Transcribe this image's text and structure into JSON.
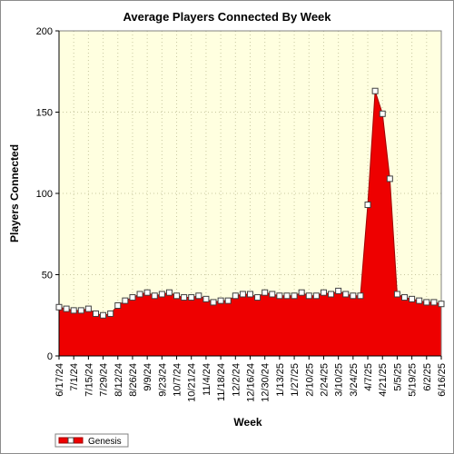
{
  "chart_data": {
    "type": "area",
    "title": "Average Players Connected By Week",
    "xlabel": "Week",
    "ylabel": "Players Connected",
    "ylim": [
      0,
      200
    ],
    "yticks": [
      0,
      50,
      100,
      150,
      200
    ],
    "grid": true,
    "legend_position": "bottom-left",
    "colors": {
      "fill": "#ee0000",
      "line": "#a00000",
      "plot_bg": "#ffffe0",
      "grid": "#c8c8a0"
    },
    "x_tick_labels": [
      "6/17/24",
      "7/1/24",
      "7/15/24",
      "7/29/24",
      "8/12/24",
      "8/26/24",
      "9/9/24",
      "9/23/24",
      "10/7/24",
      "10/21/24",
      "11/4/24",
      "11/18/24",
      "12/2/24",
      "12/16/24",
      "12/30/24",
      "1/13/25",
      "1/27/25",
      "2/10/25",
      "2/24/25",
      "3/10/25",
      "3/24/25",
      "4/7/25",
      "4/21/25",
      "5/5/25",
      "5/19/25",
      "6/2/25",
      "6/16/25"
    ],
    "series": [
      {
        "name": "Genesis",
        "x": [
          "6/17/24",
          "6/24/24",
          "7/1/24",
          "7/8/24",
          "7/15/24",
          "7/22/24",
          "7/29/24",
          "8/5/24",
          "8/12/24",
          "8/19/24",
          "8/26/24",
          "9/2/24",
          "9/9/24",
          "9/16/24",
          "9/23/24",
          "9/30/24",
          "10/7/24",
          "10/14/24",
          "10/21/24",
          "10/28/24",
          "11/4/24",
          "11/11/24",
          "11/18/24",
          "11/25/24",
          "12/2/24",
          "12/9/24",
          "12/16/24",
          "12/23/24",
          "12/30/24",
          "1/6/25",
          "1/13/25",
          "1/20/25",
          "1/27/25",
          "2/3/25",
          "2/10/25",
          "2/17/25",
          "2/24/25",
          "3/3/25",
          "3/10/25",
          "3/17/25",
          "3/24/25",
          "3/31/25",
          "4/7/25",
          "4/14/25",
          "4/21/25",
          "4/28/25",
          "5/5/25",
          "5/12/25",
          "5/19/25",
          "5/26/25",
          "6/2/25",
          "6/9/25",
          "6/16/25"
        ],
        "values": [
          30,
          29,
          28,
          28,
          29,
          26,
          25,
          26,
          31,
          34,
          36,
          38,
          39,
          37,
          38,
          39,
          37,
          36,
          36,
          37,
          35,
          33,
          34,
          34,
          37,
          38,
          38,
          36,
          39,
          38,
          37,
          37,
          37,
          39,
          37,
          37,
          39,
          38,
          40,
          38,
          37,
          37,
          93,
          163,
          149,
          109,
          38,
          36,
          35,
          34,
          33,
          33,
          32
        ]
      }
    ]
  }
}
